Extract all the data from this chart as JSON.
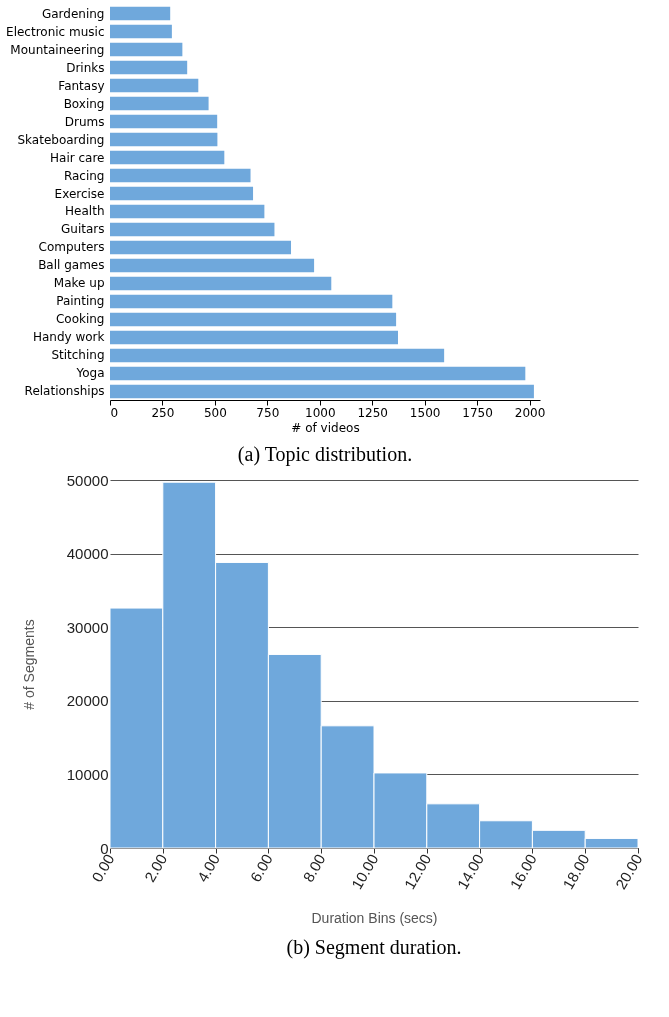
{
  "chart_data": [
    {
      "type": "bar",
      "orientation": "horizontal",
      "title": "(a) Topic distribution.",
      "xlabel": "# of videos",
      "categories": [
        "Gardening",
        "Electronic music",
        "Mountaineering",
        "Drinks",
        "Fantasy",
        "Boxing",
        "Drums",
        "Skateboarding",
        "Hair care",
        "Racing",
        "Exercise",
        "Health",
        "Guitars",
        "Computers",
        "Ball games",
        "Make up",
        "Painting",
        "Cooking",
        "Handy work",
        "Stitching",
        "Yoga",
        "Relationships"
      ],
      "values": [
        287,
        295,
        345,
        368,
        421,
        470,
        511,
        512,
        545,
        670,
        682,
        736,
        784,
        863,
        973,
        1055,
        1346,
        1364,
        1373,
        1593,
        1980,
        2021
      ],
      "color": "#6fa8dc",
      "xlim": [
        0,
        2050
      ],
      "xticks": [
        0,
        250,
        500,
        750,
        1000,
        1250,
        1500,
        1750,
        2000
      ],
      "grid": false
    },
    {
      "type": "histogram",
      "title": "(b) Segment duration.",
      "xlabel": "Duration Bins (secs)",
      "ylabel": "# of Segments",
      "bins": [
        0,
        2,
        4,
        6,
        8,
        10,
        12,
        14,
        16,
        18,
        20
      ],
      "values": [
        32600,
        49700,
        38800,
        26300,
        16600,
        10200,
        6000,
        3700,
        2400,
        1300
      ],
      "color": "#6fa8dc",
      "xlim": [
        0,
        20
      ],
      "ylim": [
        0,
        50000
      ],
      "xticks": [
        {
          "value": 0,
          "label": "0.00"
        },
        {
          "value": 2,
          "label": "2.00"
        },
        {
          "value": 4,
          "label": "4.00"
        },
        {
          "value": 6,
          "label": "6.00"
        },
        {
          "value": 8,
          "label": "8.00"
        },
        {
          "value": 10,
          "label": "10.00"
        },
        {
          "value": 12,
          "label": "12.00"
        },
        {
          "value": 14,
          "label": "14.00"
        },
        {
          "value": 16,
          "label": "16.00"
        },
        {
          "value": 18,
          "label": "18.00"
        },
        {
          "value": 20,
          "label": "20.00"
        }
      ],
      "yticks": [
        0,
        10000,
        20000,
        30000,
        40000,
        50000
      ],
      "grid": "y"
    }
  ]
}
